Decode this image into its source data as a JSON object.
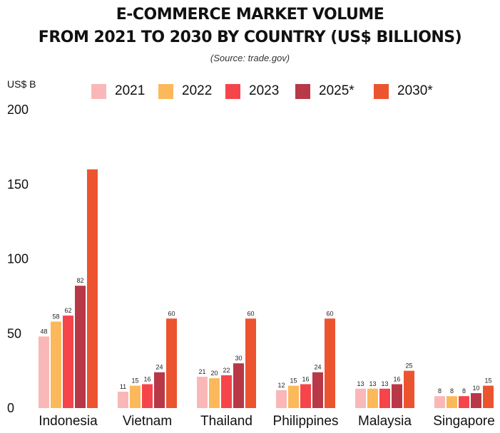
{
  "header": {
    "title_line1": "E-COMMERCE MARKET VOLUME",
    "title_line2": "FROM 2021 TO 2030 BY COUNTRY (US$ BILLIONS)",
    "source": "(Source: trade.gov)"
  },
  "chart_data": {
    "type": "bar",
    "title": "E-COMMERCE MARKET VOLUME FROM 2021 TO 2030 BY COUNTRY (US$ BILLIONS)",
    "ylabel": "US$ B",
    "xlabel": "",
    "ylim": [
      0,
      200
    ],
    "yticks": [
      0,
      50,
      100,
      150,
      200
    ],
    "grid": false,
    "legend_position": "top",
    "categories": [
      "Indonesia",
      "Vietnam",
      "Thailand",
      "Philippines",
      "Malaysia",
      "Singapore"
    ],
    "series": [
      {
        "name": "2021",
        "color": "#f9b8b7",
        "values": [
          48,
          11,
          21,
          12,
          13,
          8
        ]
      },
      {
        "name": "2022",
        "color": "#fbb95b",
        "values": [
          58,
          15,
          20,
          15,
          13,
          8
        ]
      },
      {
        "name": "2023",
        "color": "#f5454a",
        "values": [
          62,
          16,
          22,
          16,
          13,
          8
        ]
      },
      {
        "name": "2025*",
        "color": "#b83848",
        "values": [
          82,
          24,
          30,
          24,
          16,
          10
        ]
      },
      {
        "name": "2030*",
        "color": "#ec5430",
        "values": [
          160,
          60,
          60,
          60,
          25,
          15
        ]
      }
    ],
    "data_labels": [
      [
        "48",
        "58",
        "62",
        "82",
        ""
      ],
      [
        "11",
        "15",
        "16",
        "24",
        "60"
      ],
      [
        "21",
        "20",
        "22",
        "30",
        "60"
      ],
      [
        "12",
        "15",
        "16",
        "24",
        "60"
      ],
      [
        "13",
        "13",
        "13",
        "16",
        "25"
      ],
      [
        "8",
        "8",
        "8",
        "10",
        "15"
      ]
    ]
  }
}
